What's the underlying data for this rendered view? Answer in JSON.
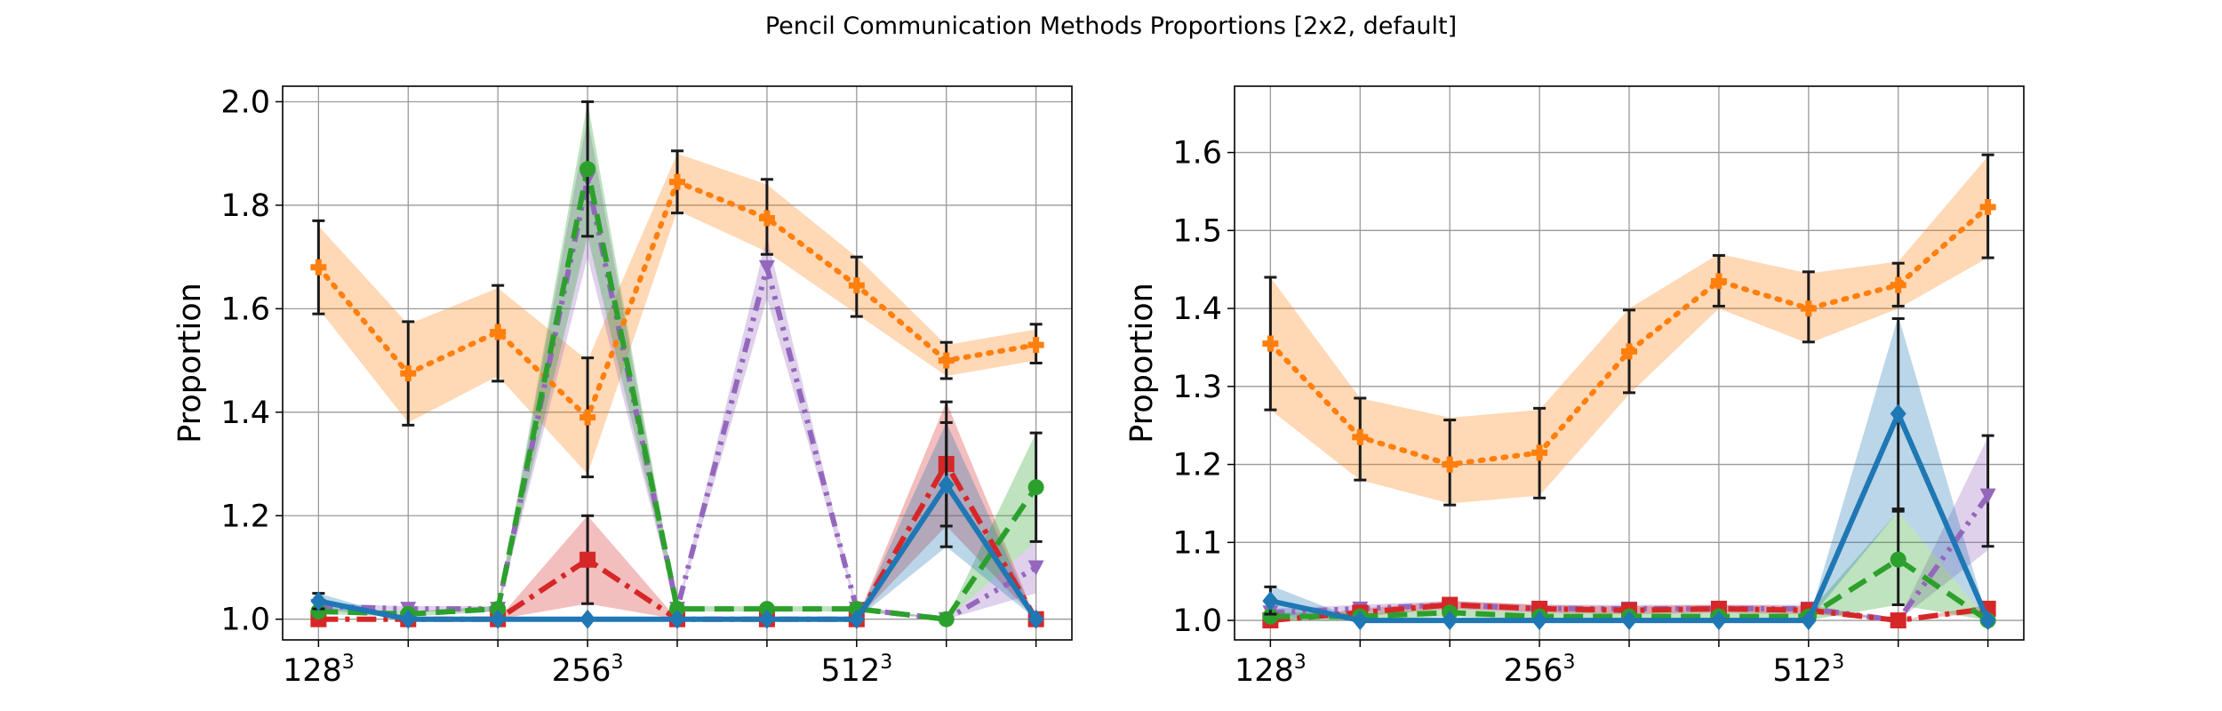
{
  "figure": {
    "suptitle": "Pencil Communication Methods Proportions [2x2, default]"
  },
  "chart_data": [
    {
      "type": "line",
      "xlabel": "",
      "ylabel": "Proportion",
      "xlim": [
        -0.4,
        8.4
      ],
      "ylim": [
        0.96,
        2.03
      ],
      "yticks": [
        1.0,
        1.2,
        1.4,
        1.6,
        1.8,
        2.0
      ],
      "ytick_labels": [
        "1.0",
        "1.2",
        "1.4",
        "1.6",
        "1.8",
        "2.0"
      ],
      "xticks": [
        0,
        3,
        6
      ],
      "xtick_labels": [
        {
          "base": "128",
          "exp": "3"
        },
        {
          "base": "256",
          "exp": "3"
        },
        {
          "base": "512",
          "exp": "3"
        }
      ],
      "grid": true,
      "x": [
        0,
        1,
        2,
        3,
        4,
        5,
        6,
        7,
        8
      ],
      "series": [
        {
          "color": "#ff7f0e",
          "dash": "3 10",
          "width": 6,
          "marker": "plus",
          "errorbars": true,
          "values": [
            1.68,
            1.475,
            1.555,
            1.39,
            1.845,
            1.775,
            1.645,
            1.5,
            1.53
          ],
          "band": [
            [
              1.6,
              1.76
            ],
            [
              1.38,
              1.57
            ],
            [
              1.47,
              1.64
            ],
            [
              1.28,
              1.5
            ],
            [
              1.79,
              1.9
            ],
            [
              1.71,
              1.84
            ],
            [
              1.59,
              1.7
            ],
            [
              1.47,
              1.53
            ],
            [
              1.5,
              1.56
            ]
          ],
          "err": [
            [
              1.59,
              1.77
            ],
            [
              1.375,
              1.575
            ],
            [
              1.46,
              1.645
            ],
            [
              1.275,
              1.505
            ],
            [
              1.785,
              1.905
            ],
            [
              1.705,
              1.85
            ],
            [
              1.585,
              1.7
            ],
            [
              1.465,
              1.535
            ],
            [
              1.495,
              1.57
            ]
          ]
        },
        {
          "color": "#9467bd",
          "dash": "16 8 4 8 4 8",
          "width": 6,
          "marker": "triangle-down",
          "errorbars": false,
          "values": [
            1.025,
            1.02,
            1.02,
            1.85,
            1.02,
            1.68,
            1.02,
            1.0,
            1.1
          ],
          "band": [
            [
              1.02,
              1.03
            ],
            [
              1.015,
              1.025
            ],
            [
              1.015,
              1.025
            ],
            [
              1.7,
              1.97
            ],
            [
              1.015,
              1.025
            ],
            [
              1.62,
              1.74
            ],
            [
              1.015,
              1.025
            ],
            [
              1.0,
              1.0
            ],
            [
              1.05,
              1.15
            ]
          ],
          "err": null
        },
        {
          "color": "#d62728",
          "dash": "22 8 5 8",
          "width": 6,
          "marker": "square",
          "errorbars": true,
          "values": [
            1.0,
            1.0,
            1.0,
            1.115,
            1.0,
            1.0,
            1.0,
            1.3,
            1.0
          ],
          "band": [
            [
              1.0,
              1.0
            ],
            [
              1.0,
              1.0
            ],
            [
              1.0,
              1.0
            ],
            [
              1.03,
              1.2
            ],
            [
              1.0,
              1.0
            ],
            [
              1.0,
              1.0
            ],
            [
              1.0,
              1.0
            ],
            [
              1.18,
              1.42
            ],
            [
              1.0,
              1.0
            ]
          ],
          "err": [
            null,
            null,
            null,
            [
              1.03,
              1.2
            ],
            null,
            null,
            null,
            [
              1.18,
              1.42
            ],
            null
          ]
        },
        {
          "color": "#2ca02c",
          "dash": "22 11",
          "width": 6,
          "marker": "circle",
          "errorbars": true,
          "values": [
            1.015,
            1.01,
            1.02,
            1.87,
            1.02,
            1.02,
            1.02,
            1.0,
            1.255
          ],
          "band": [
            [
              1.01,
              1.02
            ],
            [
              1.005,
              1.015
            ],
            [
              1.015,
              1.025
            ],
            [
              1.74,
              2.0
            ],
            [
              1.015,
              1.025
            ],
            [
              1.015,
              1.025
            ],
            [
              1.015,
              1.025
            ],
            [
              1.0,
              1.0
            ],
            [
              1.15,
              1.36
            ]
          ],
          "err": [
            null,
            null,
            null,
            [
              1.74,
              2.0
            ],
            null,
            null,
            null,
            null,
            [
              1.15,
              1.36
            ]
          ]
        },
        {
          "color": "#1f77b4",
          "dash": "",
          "width": 6,
          "marker": "diamond",
          "errorbars": true,
          "values": [
            1.035,
            1.0,
            1.0,
            1.0,
            1.0,
            1.0,
            1.0,
            1.26,
            1.0
          ],
          "band": [
            [
              1.02,
              1.05
            ],
            [
              1.0,
              1.0
            ],
            [
              1.0,
              1.0
            ],
            [
              1.0,
              1.0
            ],
            [
              1.0,
              1.0
            ],
            [
              1.0,
              1.0
            ],
            [
              1.0,
              1.0
            ],
            [
              1.14,
              1.38
            ],
            [
              1.0,
              1.0
            ]
          ],
          "err": [
            [
              1.02,
              1.05
            ],
            null,
            null,
            null,
            null,
            null,
            null,
            [
              1.14,
              1.38
            ],
            null
          ]
        }
      ]
    },
    {
      "type": "line",
      "xlabel": "",
      "ylabel": "Proportion",
      "xlim": [
        -0.4,
        8.4
      ],
      "ylim": [
        0.975,
        1.685
      ],
      "yticks": [
        1.0,
        1.1,
        1.2,
        1.3,
        1.4,
        1.5,
        1.6
      ],
      "ytick_labels": [
        "1.0",
        "1.1",
        "1.2",
        "1.3",
        "1.4",
        "1.5",
        "1.6"
      ],
      "xticks": [
        0,
        3,
        6
      ],
      "xtick_labels": [
        {
          "base": "128",
          "exp": "3"
        },
        {
          "base": "256",
          "exp": "3"
        },
        {
          "base": "512",
          "exp": "3"
        }
      ],
      "grid": true,
      "x": [
        0,
        1,
        2,
        3,
        4,
        5,
        6,
        7,
        8
      ],
      "series": [
        {
          "color": "#ff7f0e",
          "dash": "3 10",
          "width": 6,
          "marker": "plus",
          "errorbars": true,
          "values": [
            1.355,
            1.235,
            1.2,
            1.215,
            1.345,
            1.435,
            1.4,
            1.43,
            1.53
          ],
          "band": [
            [
              1.27,
              1.44
            ],
            [
              1.18,
              1.285
            ],
            [
              1.15,
              1.26
            ],
            [
              1.16,
              1.27
            ],
            [
              1.29,
              1.4
            ],
            [
              1.4,
              1.47
            ],
            [
              1.355,
              1.445
            ],
            [
              1.4,
              1.46
            ],
            [
              1.465,
              1.595
            ]
          ],
          "err": [
            [
              1.27,
              1.44
            ],
            [
              1.18,
              1.285
            ],
            [
              1.148,
              1.257
            ],
            [
              1.157,
              1.272
            ],
            [
              1.292,
              1.398
            ],
            [
              1.403,
              1.468
            ],
            [
              1.357,
              1.447
            ],
            [
              1.403,
              1.458
            ],
            [
              1.465,
              1.597
            ]
          ]
        },
        {
          "color": "#9467bd",
          "dash": "16 8 4 8 4 8",
          "width": 6,
          "marker": "triangle-down",
          "errorbars": true,
          "values": [
            1.01,
            1.015,
            1.02,
            1.015,
            1.015,
            1.015,
            1.015,
            1.0,
            1.16
          ],
          "band": [
            [
              1.005,
              1.015
            ],
            [
              1.01,
              1.02
            ],
            [
              1.015,
              1.025
            ],
            [
              1.01,
              1.02
            ],
            [
              1.01,
              1.02
            ],
            [
              1.01,
              1.02
            ],
            [
              1.01,
              1.02
            ],
            [
              1.0,
              1.0
            ],
            [
              1.09,
              1.235
            ]
          ],
          "err": [
            null,
            null,
            null,
            null,
            null,
            null,
            null,
            null,
            [
              1.095,
              1.237
            ]
          ]
        },
        {
          "color": "#d62728",
          "dash": "22 8 5 8",
          "width": 6,
          "marker": "square",
          "errorbars": false,
          "values": [
            1.0,
            1.01,
            1.02,
            1.015,
            1.013,
            1.015,
            1.013,
            1.0,
            1.015
          ],
          "band": [
            [
              1.0,
              1.0
            ],
            [
              1.005,
              1.015
            ],
            [
              1.015,
              1.025
            ],
            [
              1.01,
              1.02
            ],
            [
              1.008,
              1.018
            ],
            [
              1.01,
              1.02
            ],
            [
              1.008,
              1.018
            ],
            [
              1.0,
              1.0
            ],
            [
              1.01,
              1.02
            ]
          ],
          "err": null
        },
        {
          "color": "#2ca02c",
          "dash": "22 11",
          "width": 6,
          "marker": "circle",
          "errorbars": true,
          "values": [
            1.005,
            1.005,
            1.01,
            1.005,
            1.005,
            1.005,
            1.005,
            1.078,
            1.0
          ],
          "band": [
            [
              1.0,
              1.01
            ],
            [
              1.0,
              1.01
            ],
            [
              1.005,
              1.015
            ],
            [
              1.0,
              1.01
            ],
            [
              1.0,
              1.01
            ],
            [
              1.0,
              1.01
            ],
            [
              1.0,
              1.01
            ],
            [
              1.02,
              1.14
            ],
            [
              1.0,
              1.0
            ]
          ],
          "err": [
            null,
            null,
            null,
            null,
            null,
            null,
            null,
            [
              1.02,
              1.14
            ],
            null
          ]
        },
        {
          "color": "#1f77b4",
          "dash": "",
          "width": 6,
          "marker": "diamond",
          "errorbars": true,
          "values": [
            1.025,
            1.0,
            1.0,
            1.0,
            1.0,
            1.0,
            1.0,
            1.265,
            1.0
          ],
          "band": [
            [
              1.005,
              1.045
            ],
            [
              1.0,
              1.0
            ],
            [
              1.0,
              1.0
            ],
            [
              1.0,
              1.0
            ],
            [
              1.0,
              1.0
            ],
            [
              1.0,
              1.0
            ],
            [
              1.0,
              1.0
            ],
            [
              1.14,
              1.39
            ],
            [
              1.0,
              1.0
            ]
          ],
          "err": [
            [
              1.008,
              1.043
            ],
            null,
            null,
            null,
            null,
            null,
            null,
            [
              1.143,
              1.387
            ],
            null
          ]
        }
      ]
    }
  ]
}
